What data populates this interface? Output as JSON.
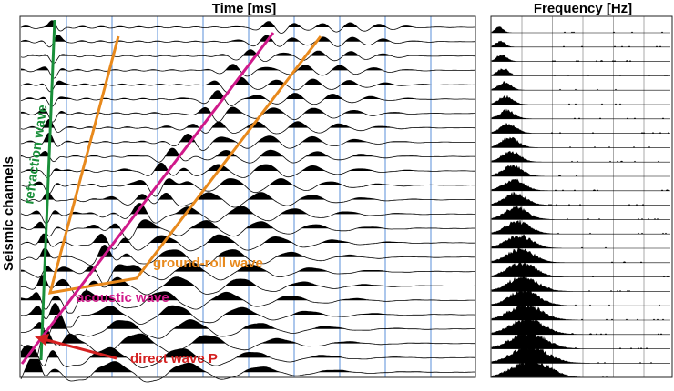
{
  "header": {
    "time_title": "Time [ms]",
    "frequency_title": "Frequency [Hz]",
    "y_label": "Seismic channels"
  },
  "annotations": {
    "refraction": "refraction wave",
    "ground_roll": "ground-roll wave",
    "acoustic": "acoustic wave",
    "direct": "direct wave P"
  }
}
